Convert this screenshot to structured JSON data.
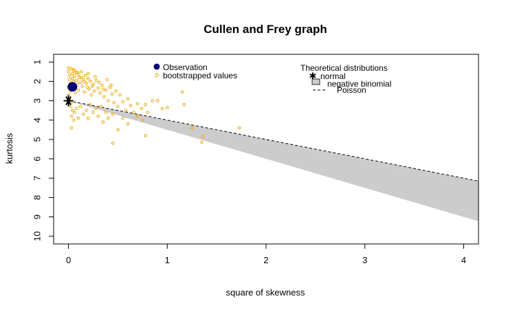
{
  "chart_data": {
    "type": "scatter",
    "title": "Cullen and Frey graph",
    "xlabel": "square of skewness",
    "ylabel": "kurtosis",
    "xlim": [
      -0.15,
      4.15
    ],
    "ylim": [
      10.4,
      0.6
    ],
    "x_ticks": [
      "0",
      "1",
      "2",
      "3",
      "4"
    ],
    "y_ticks": [
      "1",
      "2",
      "3",
      "4",
      "5",
      "6",
      "7",
      "8",
      "9",
      "10"
    ],
    "legend_left": {
      "items": [
        "Observation",
        "bootstrapped values"
      ]
    },
    "legend_right": {
      "title": "Theoretical distributions",
      "items": [
        "normal",
        "negative binomial",
        "Poisson"
      ]
    },
    "observation": {
      "x": 0.04,
      "y": 2.28
    },
    "normal_point": {
      "x": 0,
      "y": 3
    },
    "poisson_line": {
      "x": [
        0,
        4.15
      ],
      "y": [
        3,
        7.15
      ]
    },
    "negative_binomial_region": {
      "upper": {
        "x": [
          0,
          4.15
        ],
        "y": [
          3,
          7.15
        ]
      },
      "lower": {
        "x": [
          0,
          4.15
        ],
        "y": [
          3,
          9.23
        ]
      }
    },
    "bootstrapped_values": [
      [
        0.0,
        1.3
      ],
      [
        0.0,
        1.5
      ],
      [
        0.01,
        1.7
      ],
      [
        0.01,
        1.9
      ],
      [
        0.02,
        2.1
      ],
      [
        0.0,
        2.3
      ],
      [
        0.02,
        2.5
      ],
      [
        0.0,
        2.7
      ],
      [
        0.01,
        2.9
      ],
      [
        0.02,
        3.1
      ],
      [
        0.03,
        1.35
      ],
      [
        0.04,
        1.6
      ],
      [
        0.04,
        1.85
      ],
      [
        0.05,
        2.0
      ],
      [
        0.05,
        2.2
      ],
      [
        0.06,
        1.45
      ],
      [
        0.06,
        1.75
      ],
      [
        0.07,
        2.35
      ],
      [
        0.07,
        2.6
      ],
      [
        0.08,
        1.55
      ],
      [
        0.08,
        1.95
      ],
      [
        0.09,
        2.15
      ],
      [
        0.1,
        1.65
      ],
      [
        0.1,
        2.45
      ],
      [
        0.11,
        1.8
      ],
      [
        0.12,
        2.05
      ],
      [
        0.13,
        1.5
      ],
      [
        0.14,
        2.25
      ],
      [
        0.15,
        1.9
      ],
      [
        0.16,
        2.55
      ],
      [
        0.17,
        1.7
      ],
      [
        0.18,
        2.1
      ],
      [
        0.19,
        2.3
      ],
      [
        0.2,
        1.85
      ],
      [
        0.21,
        2.4
      ],
      [
        0.22,
        2.0
      ],
      [
        0.23,
        2.7
      ],
      [
        0.25,
        2.15
      ],
      [
        0.26,
        2.5
      ],
      [
        0.28,
        1.95
      ],
      [
        0.3,
        2.35
      ],
      [
        0.32,
        2.6
      ],
      [
        0.34,
        2.2
      ],
      [
        0.36,
        2.8
      ],
      [
        0.38,
        2.45
      ],
      [
        0.4,
        3.0
      ],
      [
        0.42,
        2.3
      ],
      [
        0.44,
        2.65
      ],
      [
        0.46,
        3.1
      ],
      [
        0.48,
        2.5
      ],
      [
        0.5,
        3.3
      ],
      [
        0.52,
        2.7
      ],
      [
        0.55,
        3.05
      ],
      [
        0.58,
        3.5
      ],
      [
        0.6,
        2.9
      ],
      [
        0.63,
        3.25
      ],
      [
        0.66,
        3.6
      ],
      [
        0.7,
        3.15
      ],
      [
        0.74,
        3.4
      ],
      [
        0.78,
        3.2
      ],
      [
        0.02,
        3.3
      ],
      [
        0.04,
        3.5
      ],
      [
        0.03,
        3.8
      ],
      [
        0.06,
        3.6
      ],
      [
        0.05,
        4.0
      ],
      [
        0.03,
        4.4
      ],
      [
        0.08,
        3.4
      ],
      [
        0.1,
        3.9
      ],
      [
        0.12,
        3.3
      ],
      [
        0.15,
        3.7
      ],
      [
        0.18,
        3.5
      ],
      [
        0.2,
        3.9
      ],
      [
        0.22,
        3.2
      ],
      [
        0.25,
        3.6
      ],
      [
        0.28,
        3.4
      ],
      [
        0.3,
        3.8
      ],
      [
        0.33,
        3.3
      ],
      [
        0.35,
        4.1
      ],
      [
        0.38,
        3.6
      ],
      [
        0.4,
        3.9
      ],
      [
        0.45,
        3.7
      ],
      [
        0.5,
        4.5
      ],
      [
        0.55,
        3.9
      ],
      [
        0.6,
        4.2
      ],
      [
        0.45,
        5.2
      ],
      [
        0.75,
        4.0
      ],
      [
        0.78,
        4.8
      ],
      [
        0.85,
        3.0
      ],
      [
        0.95,
        3.4
      ],
      [
        1.0,
        3.35
      ],
      [
        1.15,
        2.55
      ],
      [
        1.17,
        3.2
      ],
      [
        1.25,
        4.4
      ],
      [
        1.35,
        5.15
      ],
      [
        1.36,
        4.85
      ],
      [
        1.73,
        4.4
      ],
      [
        0.7,
        3.8
      ],
      [
        0.8,
        3.6
      ],
      [
        0.9,
        3.0
      ],
      [
        0.05,
        1.4
      ],
      [
        0.09,
        1.55
      ],
      [
        0.13,
        1.8
      ],
      [
        0.16,
        2.0
      ],
      [
        0.2,
        1.6
      ],
      [
        0.24,
        2.25
      ],
      [
        0.27,
        1.75
      ],
      [
        0.31,
        2.05
      ],
      [
        0.35,
        2.4
      ],
      [
        0.39,
        1.9
      ],
      [
        0.43,
        2.2
      ]
    ],
    "colors": {
      "observation": "#000080",
      "bootstrapped": "#FFA500",
      "region": "#CCCCCC",
      "axis": "#000000"
    },
    "legend_placement": {
      "left": "top-left",
      "right": "top-right"
    }
  }
}
